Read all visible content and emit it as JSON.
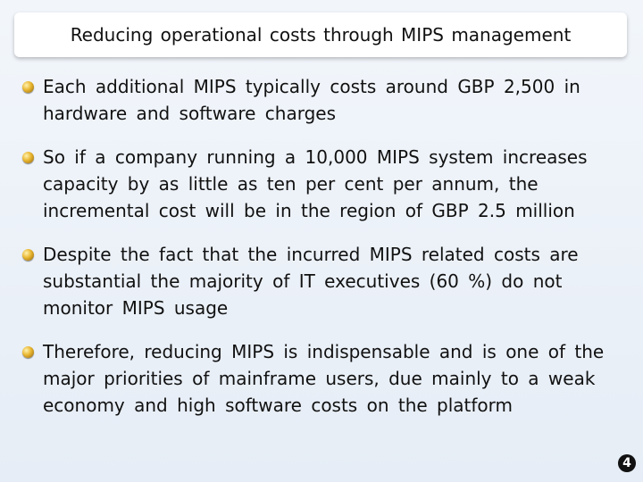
{
  "slide": {
    "title": "Reducing operational costs through MIPS management",
    "bullets": [
      {
        "text": "Each additional MIPS typically costs around GBP 2,500 in hardware and software charges"
      },
      {
        "text": "So if a company running a 10,000 MIPS system increases capacity by as little as ten per cent per annum, the incremental cost will be in the region of GBP 2.5 million"
      },
      {
        "text": "Despite the fact that the incurred MIPS related costs are substantial the majority of IT executives (60 %) do not monitor MIPS usage"
      },
      {
        "text": "Therefore, reducing MIPS is indispensable and is one of the major priorities of mainframe users, due mainly to a weak economy and high software costs on the platform"
      }
    ],
    "slide_number": "4"
  }
}
